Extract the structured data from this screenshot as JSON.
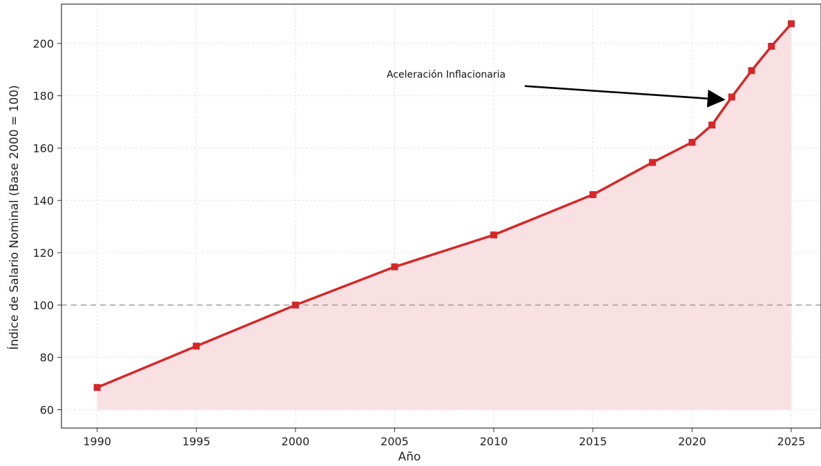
{
  "chart_data": {
    "type": "line",
    "title": "",
    "xlabel": "Año",
    "ylabel": "Índice de Salario Nominal (Base 2000 = 100)",
    "x": [
      1990,
      1995,
      2000,
      2005,
      2010,
      2015,
      2018,
      2020,
      2021,
      2022,
      2023,
      2024,
      2025
    ],
    "series": [
      {
        "values": [
          68.5,
          84.3,
          100.0,
          114.6,
          126.8,
          142.2,
          154.5,
          162.2,
          168.8,
          179.5,
          189.6,
          198.9,
          207.5
        ],
        "color": "#d62728",
        "marker": "square",
        "fill_color": "#f9e1e3",
        "fill_baseline": 60
      }
    ],
    "xlim": [
      1988.2,
      2026.5
    ],
    "ylim": [
      53,
      215
    ],
    "xticks": [
      1990,
      1995,
      2000,
      2005,
      2010,
      2015,
      2020,
      2025
    ],
    "yticks": [
      60,
      80,
      100,
      120,
      140,
      160,
      180,
      200
    ],
    "grid": true,
    "reference_line": {
      "y": 100,
      "style": "dashed",
      "color": "#9e9e9e"
    },
    "annotation": {
      "text": "Aceleración Inflacionaria",
      "text_at": {
        "x": 2004.6,
        "y": 185.8
      },
      "arrow_to": {
        "x": 2021.8,
        "y": 178.5
      }
    }
  }
}
